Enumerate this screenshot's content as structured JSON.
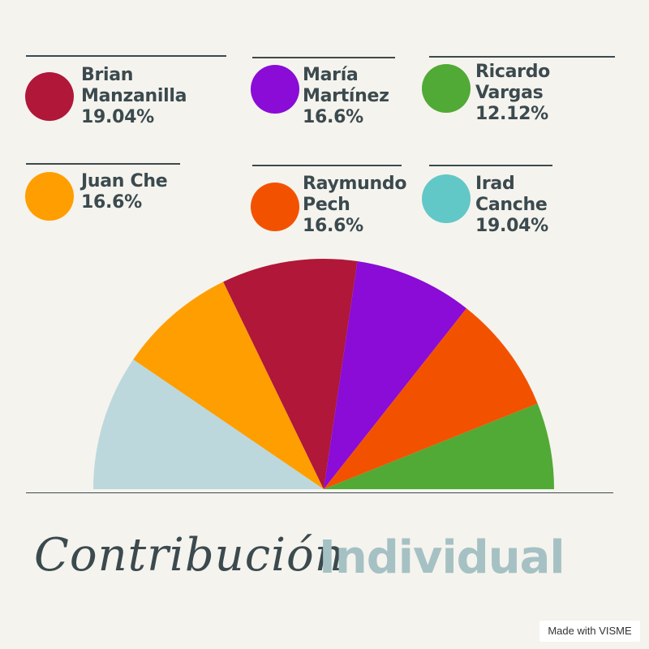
{
  "chart_data": {
    "type": "pie",
    "subtype": "semicircle",
    "legend_position": "top",
    "legend": [
      {
        "name_lines": [
          "Brian",
          "Manzanilla"
        ],
        "label": "19.04%",
        "color": "#b01738"
      },
      {
        "name_lines": [
          "María",
          "Martínez"
        ],
        "label": "16.6%",
        "color": "#8a0cd6"
      },
      {
        "name_lines": [
          "Ricardo",
          "Vargas"
        ],
        "label": "12.12%",
        "color": "#50aa35"
      },
      {
        "name_lines": [
          "Juan Che"
        ],
        "label": "16.6%",
        "color": "#ff9e00"
      },
      {
        "name_lines": [
          "Raymundo",
          "Pech"
        ],
        "label": "16.6%",
        "color": "#f25200"
      },
      {
        "name_lines": [
          "Irad",
          "Canche"
        ],
        "label": "19.04%",
        "color": "#62c7c7"
      }
    ],
    "slices": [
      {
        "name": "Irad Canche",
        "value": 19.04,
        "color": "#bcd8dc"
      },
      {
        "name": "Juan Che",
        "value": 16.6,
        "color": "#ff9e00"
      },
      {
        "name": "Brian Manzanilla",
        "value": 19.04,
        "color": "#b01738"
      },
      {
        "name": "María Martínez",
        "value": 16.6,
        "color": "#8a0cd6"
      },
      {
        "name": "Raymundo Pech",
        "value": 16.6,
        "color": "#f25200"
      },
      {
        "name": "Ricardo Vargas",
        "value": 12.12,
        "color": "#50aa35"
      }
    ]
  },
  "title": {
    "part1": "Contribución",
    "part2": "Individual"
  },
  "badge": "Made with VISME"
}
